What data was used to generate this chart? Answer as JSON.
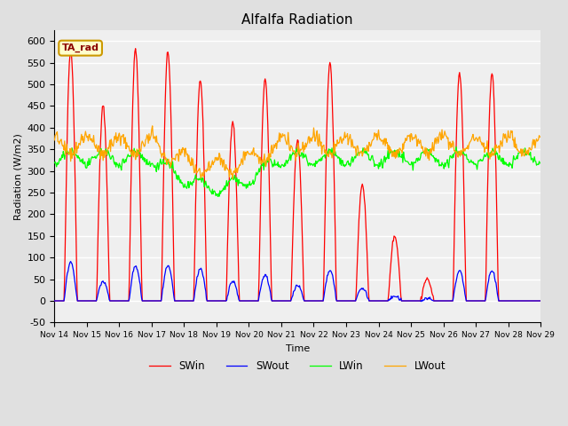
{
  "title": "Alfalfa Radiation",
  "xlabel": "Time",
  "ylabel": "Radiation (W/m2)",
  "ylim": [
    -50,
    625
  ],
  "yticks": [
    -50,
    0,
    50,
    100,
    150,
    200,
    250,
    300,
    350,
    400,
    450,
    500,
    550,
    600
  ],
  "bg_color": "#e0e0e0",
  "plot_bg_color": "#efefef",
  "grid_color": "white",
  "legend_label": "TA_rad",
  "legend_bg": "#ffffcc",
  "legend_border": "#cc9900",
  "series": [
    "SWin",
    "SWout",
    "LWin",
    "LWout"
  ],
  "colors": [
    "red",
    "blue",
    "lime",
    "orange"
  ],
  "n_days": 15,
  "start_day": 14,
  "SWin_peaks": [
    580,
    450,
    580,
    575,
    510,
    415,
    510,
    370,
    550,
    270,
    150,
    50,
    525,
    525,
    0
  ],
  "SWout_peaks": [
    90,
    45,
    80,
    80,
    75,
    45,
    60,
    35,
    70,
    30,
    10,
    5,
    70,
    70,
    0
  ]
}
